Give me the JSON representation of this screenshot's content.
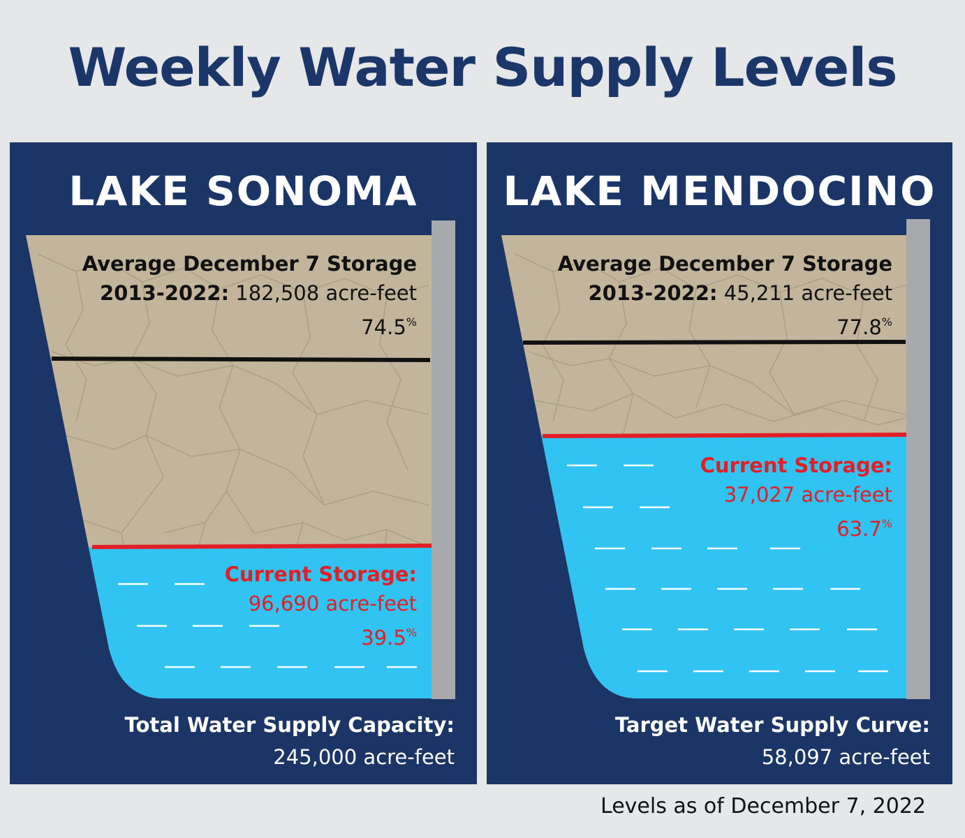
{
  "title": "Weekly Water Supply Levels",
  "as_of": "Levels as of December 7, 2022",
  "colors": {
    "panel": "#1b3567",
    "dry_earth": "#c2b59b",
    "water": "#31c3f2",
    "current_line": "#e21f26",
    "average_line": "#111111",
    "dam": "#a7a9ac"
  },
  "lakes": [
    {
      "name": "LAKE SONOMA",
      "average": {
        "line1": "Average December 7 Storage",
        "period": "2013-2022:",
        "value": "182,508 acre-feet",
        "pct": "74.5",
        "pct_sign": "%"
      },
      "current": {
        "label": "Current Storage:",
        "value": "96,690 acre-feet",
        "pct": "39.5",
        "pct_sign": "%"
      },
      "footer": {
        "label": "Total Water Supply Capacity:",
        "value": "245,000 acre-feet"
      }
    },
    {
      "name": "LAKE MENDOCINO",
      "average": {
        "line1": "Average December 7 Storage",
        "period": "2013-2022:",
        "value": "45,211 acre-feet",
        "pct": "77.8",
        "pct_sign": "%"
      },
      "current": {
        "label": "Current Storage:",
        "value": "37,027 acre-feet",
        "pct": "63.7",
        "pct_sign": "%"
      },
      "footer": {
        "label": "Target Water Supply Curve:",
        "value": "58,097 acre-feet"
      }
    }
  ],
  "chart_data": {
    "type": "bar",
    "categories": [
      "LAKE SONOMA",
      "LAKE MENDOCINO"
    ],
    "series": [
      {
        "name": "Current Storage",
        "values_acre_feet": [
          96690,
          37027
        ],
        "values_pct": [
          39.5,
          63.7
        ]
      },
      {
        "name": "Average December 7 Storage 2013-2022",
        "values_acre_feet": [
          182508,
          45211
        ],
        "values_pct": [
          74.5,
          77.8
        ]
      }
    ],
    "capacity_acre_feet": [
      245000,
      58097
    ],
    "ylim_pct": [
      0,
      100
    ]
  }
}
